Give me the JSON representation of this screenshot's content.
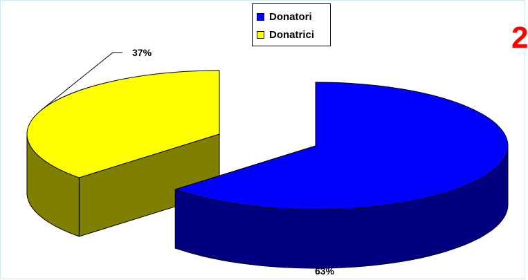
{
  "chart_data": {
    "type": "pie",
    "style": "3d-exploded",
    "categories": [
      "Donatori",
      "Donatrici"
    ],
    "values": [
      63,
      37
    ],
    "labels": [
      "63%",
      "37%"
    ],
    "colors": [
      "#0000ff",
      "#ffff00"
    ],
    "side_colors": [
      "#000080",
      "#808000"
    ],
    "title": "",
    "legend": "top-center"
  },
  "corner_text": "2"
}
